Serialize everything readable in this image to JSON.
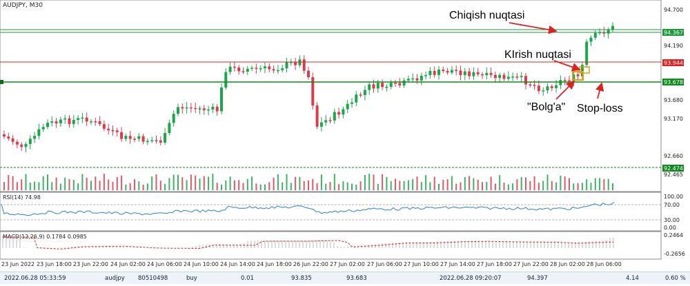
{
  "window": {
    "symbol_timeframe": "AUDJPY, M30"
  },
  "annotations": {
    "exit_label": "Chiqish nuqtasi",
    "entry_label": "KIrish nuqtasi",
    "flag_label": "\"Bolg'a\"",
    "stop_label": "Stop-loss"
  },
  "price_axis": {
    "ticks": [
      "94.700",
      "94.190",
      "93.680",
      "93.170",
      "92.660",
      "92.465"
    ],
    "levels": [
      {
        "name": "exit-level",
        "value": "94.367",
        "color": "#1a9a3a"
      },
      {
        "name": "entry-level",
        "value": "93.944",
        "color": "#e02020"
      },
      {
        "name": "stop-level",
        "value": "93.678",
        "color": "#0c8a1c"
      },
      {
        "name": "lower-level",
        "value": "92.474",
        "color": "#0c8a1c"
      }
    ]
  },
  "rsi": {
    "label": "RSI(14) 74.98",
    "ticks": [
      "100.00",
      "70.00",
      "30.00",
      "0.00"
    ]
  },
  "macd": {
    "label": "MACD(12,26,9) 0.1784 0.0985",
    "ticks": [
      "0.2464",
      "-0.2656"
    ]
  },
  "time_axis": {
    "labels": [
      "23 Jun 2022",
      "23 Jun 18:00",
      "23 Jun 22:00",
      "24 Jun 02:00",
      "24 Jun 06:00",
      "24 Jun 10:00",
      "24 Jun 14:00",
      "24 Jun 18:00",
      "26 Jun 22:00",
      "27 Jun 02:00",
      "27 Jun 06:00",
      "27 Jun 10:00",
      "27 Jun 14:00",
      "27 Jun 18:00",
      "27 Jun 22:00",
      "28 Jun 02:00",
      "28 Jun 06:00"
    ]
  },
  "status_bar": {
    "open_time": "2022.06.28 05:33:59",
    "symbol": "audjpy",
    "ticket": "80510498",
    "type": "buy",
    "volume": "0.01",
    "open_price": "93.835",
    "stop_loss": "93.683",
    "close_time": "2022.06.28 09:20:07",
    "close_price": "94.397",
    "profit": "4.14",
    "percent": "0.60 %"
  },
  "colors": {
    "bull": "#1aa64a",
    "bear": "#e0394a",
    "rsi_line": "#2a7fd4",
    "macd_hist": "#b8b8b8",
    "macd_signal": "#e02020",
    "arrow": "#e02020"
  }
}
